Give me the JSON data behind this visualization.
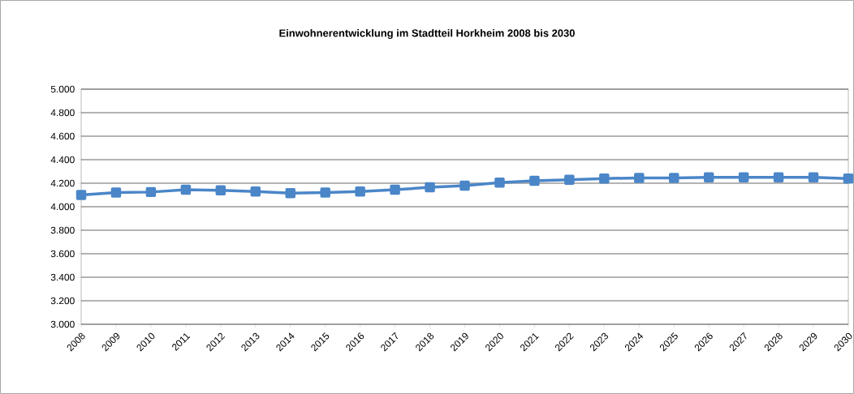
{
  "chart_data": {
    "type": "line",
    "title": "Einwohnerentwicklung im Stadtteil Horkheim 2008 bis 2030",
    "categories": [
      "2008",
      "2009",
      "2010",
      "2011",
      "2012",
      "2013",
      "2014",
      "2015",
      "2016",
      "2017",
      "2018",
      "2019",
      "2020",
      "2021",
      "2022",
      "2023",
      "2024",
      "2025",
      "2026",
      "2027",
      "2028",
      "2029",
      "2030"
    ],
    "series": [
      {
        "color": "#4a86c8",
        "values": [
          4100,
          4120,
          4125,
          4145,
          4140,
          4130,
          4115,
          4120,
          4130,
          4145,
          4165,
          4180,
          4205,
          4220,
          4230,
          4240,
          4245,
          4245,
          4250,
          4250,
          4250,
          4250,
          4240
        ]
      }
    ],
    "ylim": [
      3000,
      5000
    ],
    "yticks": [
      {
        "value": 3000,
        "label": "3.000"
      },
      {
        "value": 3200,
        "label": "3.200"
      },
      {
        "value": 3400,
        "label": "3.400"
      },
      {
        "value": 3600,
        "label": "3.600"
      },
      {
        "value": 3800,
        "label": "3.800"
      },
      {
        "value": 4000,
        "label": "4.000"
      },
      {
        "value": 4200,
        "label": "4.200"
      },
      {
        "value": 4400,
        "label": "4.400"
      },
      {
        "value": 4600,
        "label": "4.600"
      },
      {
        "value": 4800,
        "label": "4.800"
      },
      {
        "value": 5000,
        "label": "5.000"
      }
    ],
    "grid": "y",
    "marker": "square",
    "line_style": "solid"
  }
}
